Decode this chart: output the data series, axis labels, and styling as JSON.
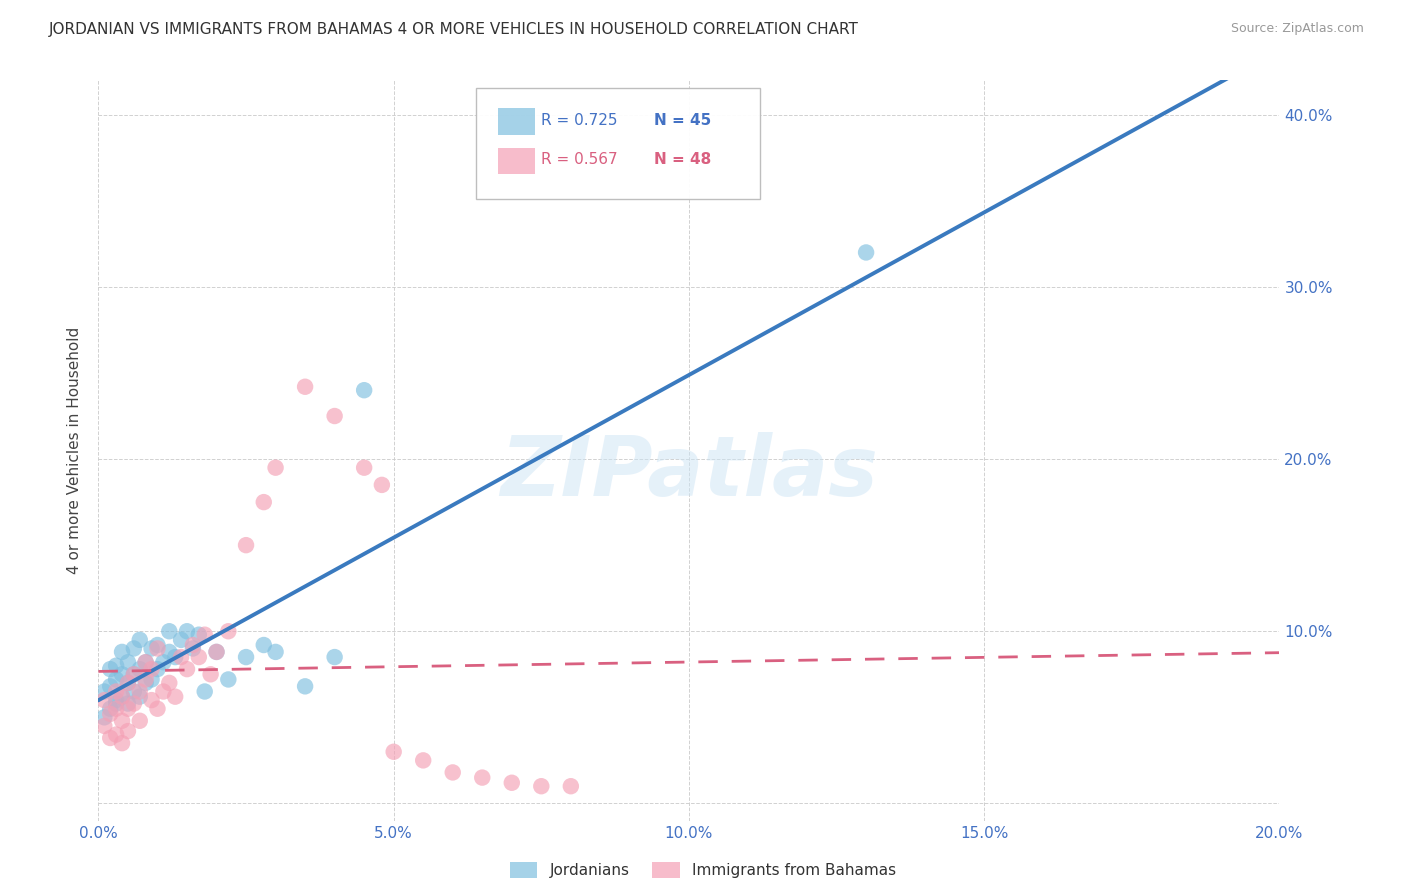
{
  "title": "JORDANIAN VS IMMIGRANTS FROM BAHAMAS 4 OR MORE VEHICLES IN HOUSEHOLD CORRELATION CHART",
  "source": "Source: ZipAtlas.com",
  "ylabel": "4 or more Vehicles in Household",
  "xlim": [
    0.0,
    0.2
  ],
  "ylim": [
    -0.01,
    0.42
  ],
  "xticks": [
    0.0,
    0.05,
    0.1,
    0.15,
    0.2
  ],
  "yticks": [
    0.0,
    0.1,
    0.2,
    0.3,
    0.4
  ],
  "xtick_labels": [
    "0.0%",
    "5.0%",
    "10.0%",
    "15.0%",
    "20.0%"
  ],
  "ytick_labels_right": [
    "",
    "10.0%",
    "20.0%",
    "30.0%",
    "40.0%"
  ],
  "blue_color": "#7fbfdf",
  "pink_color": "#f4a0b5",
  "blue_line_color": "#3a7abf",
  "pink_line_color": "#d96080",
  "legend_blue_R": "R = 0.725",
  "legend_blue_N": "N = 45",
  "legend_pink_R": "R = 0.567",
  "legend_pink_N": "N = 48",
  "legend_label_blue": "Jordanians",
  "legend_label_pink": "Immigrants from Bahamas",
  "watermark": "ZIPatlas",
  "blue_x": [
    0.001,
    0.001,
    0.002,
    0.002,
    0.002,
    0.003,
    0.003,
    0.003,
    0.003,
    0.004,
    0.004,
    0.004,
    0.005,
    0.005,
    0.005,
    0.006,
    0.006,
    0.006,
    0.007,
    0.007,
    0.007,
    0.008,
    0.008,
    0.009,
    0.009,
    0.01,
    0.01,
    0.011,
    0.012,
    0.012,
    0.013,
    0.014,
    0.015,
    0.016,
    0.017,
    0.018,
    0.02,
    0.022,
    0.025,
    0.028,
    0.03,
    0.035,
    0.04,
    0.13,
    0.045
  ],
  "blue_y": [
    0.05,
    0.065,
    0.055,
    0.068,
    0.078,
    0.058,
    0.072,
    0.06,
    0.08,
    0.062,
    0.075,
    0.088,
    0.058,
    0.07,
    0.082,
    0.065,
    0.075,
    0.09,
    0.062,
    0.078,
    0.095,
    0.07,
    0.082,
    0.072,
    0.09,
    0.078,
    0.092,
    0.082,
    0.088,
    0.1,
    0.085,
    0.095,
    0.1,
    0.09,
    0.098,
    0.065,
    0.088,
    0.072,
    0.085,
    0.092,
    0.088,
    0.068,
    0.085,
    0.32,
    0.24
  ],
  "pink_x": [
    0.001,
    0.001,
    0.002,
    0.002,
    0.003,
    0.003,
    0.003,
    0.004,
    0.004,
    0.004,
    0.005,
    0.005,
    0.005,
    0.006,
    0.006,
    0.007,
    0.007,
    0.008,
    0.008,
    0.009,
    0.009,
    0.01,
    0.01,
    0.011,
    0.012,
    0.013,
    0.014,
    0.015,
    0.016,
    0.017,
    0.018,
    0.019,
    0.02,
    0.022,
    0.025,
    0.028,
    0.03,
    0.035,
    0.04,
    0.045,
    0.048,
    0.05,
    0.055,
    0.06,
    0.065,
    0.07,
    0.075,
    0.08
  ],
  "pink_y": [
    0.045,
    0.06,
    0.052,
    0.038,
    0.055,
    0.04,
    0.065,
    0.048,
    0.062,
    0.035,
    0.055,
    0.07,
    0.042,
    0.075,
    0.058,
    0.048,
    0.065,
    0.072,
    0.082,
    0.06,
    0.078,
    0.055,
    0.09,
    0.065,
    0.07,
    0.062,
    0.085,
    0.078,
    0.092,
    0.085,
    0.098,
    0.075,
    0.088,
    0.1,
    0.15,
    0.175,
    0.195,
    0.242,
    0.225,
    0.195,
    0.185,
    0.03,
    0.025,
    0.018,
    0.015,
    0.012,
    0.01,
    0.01
  ]
}
